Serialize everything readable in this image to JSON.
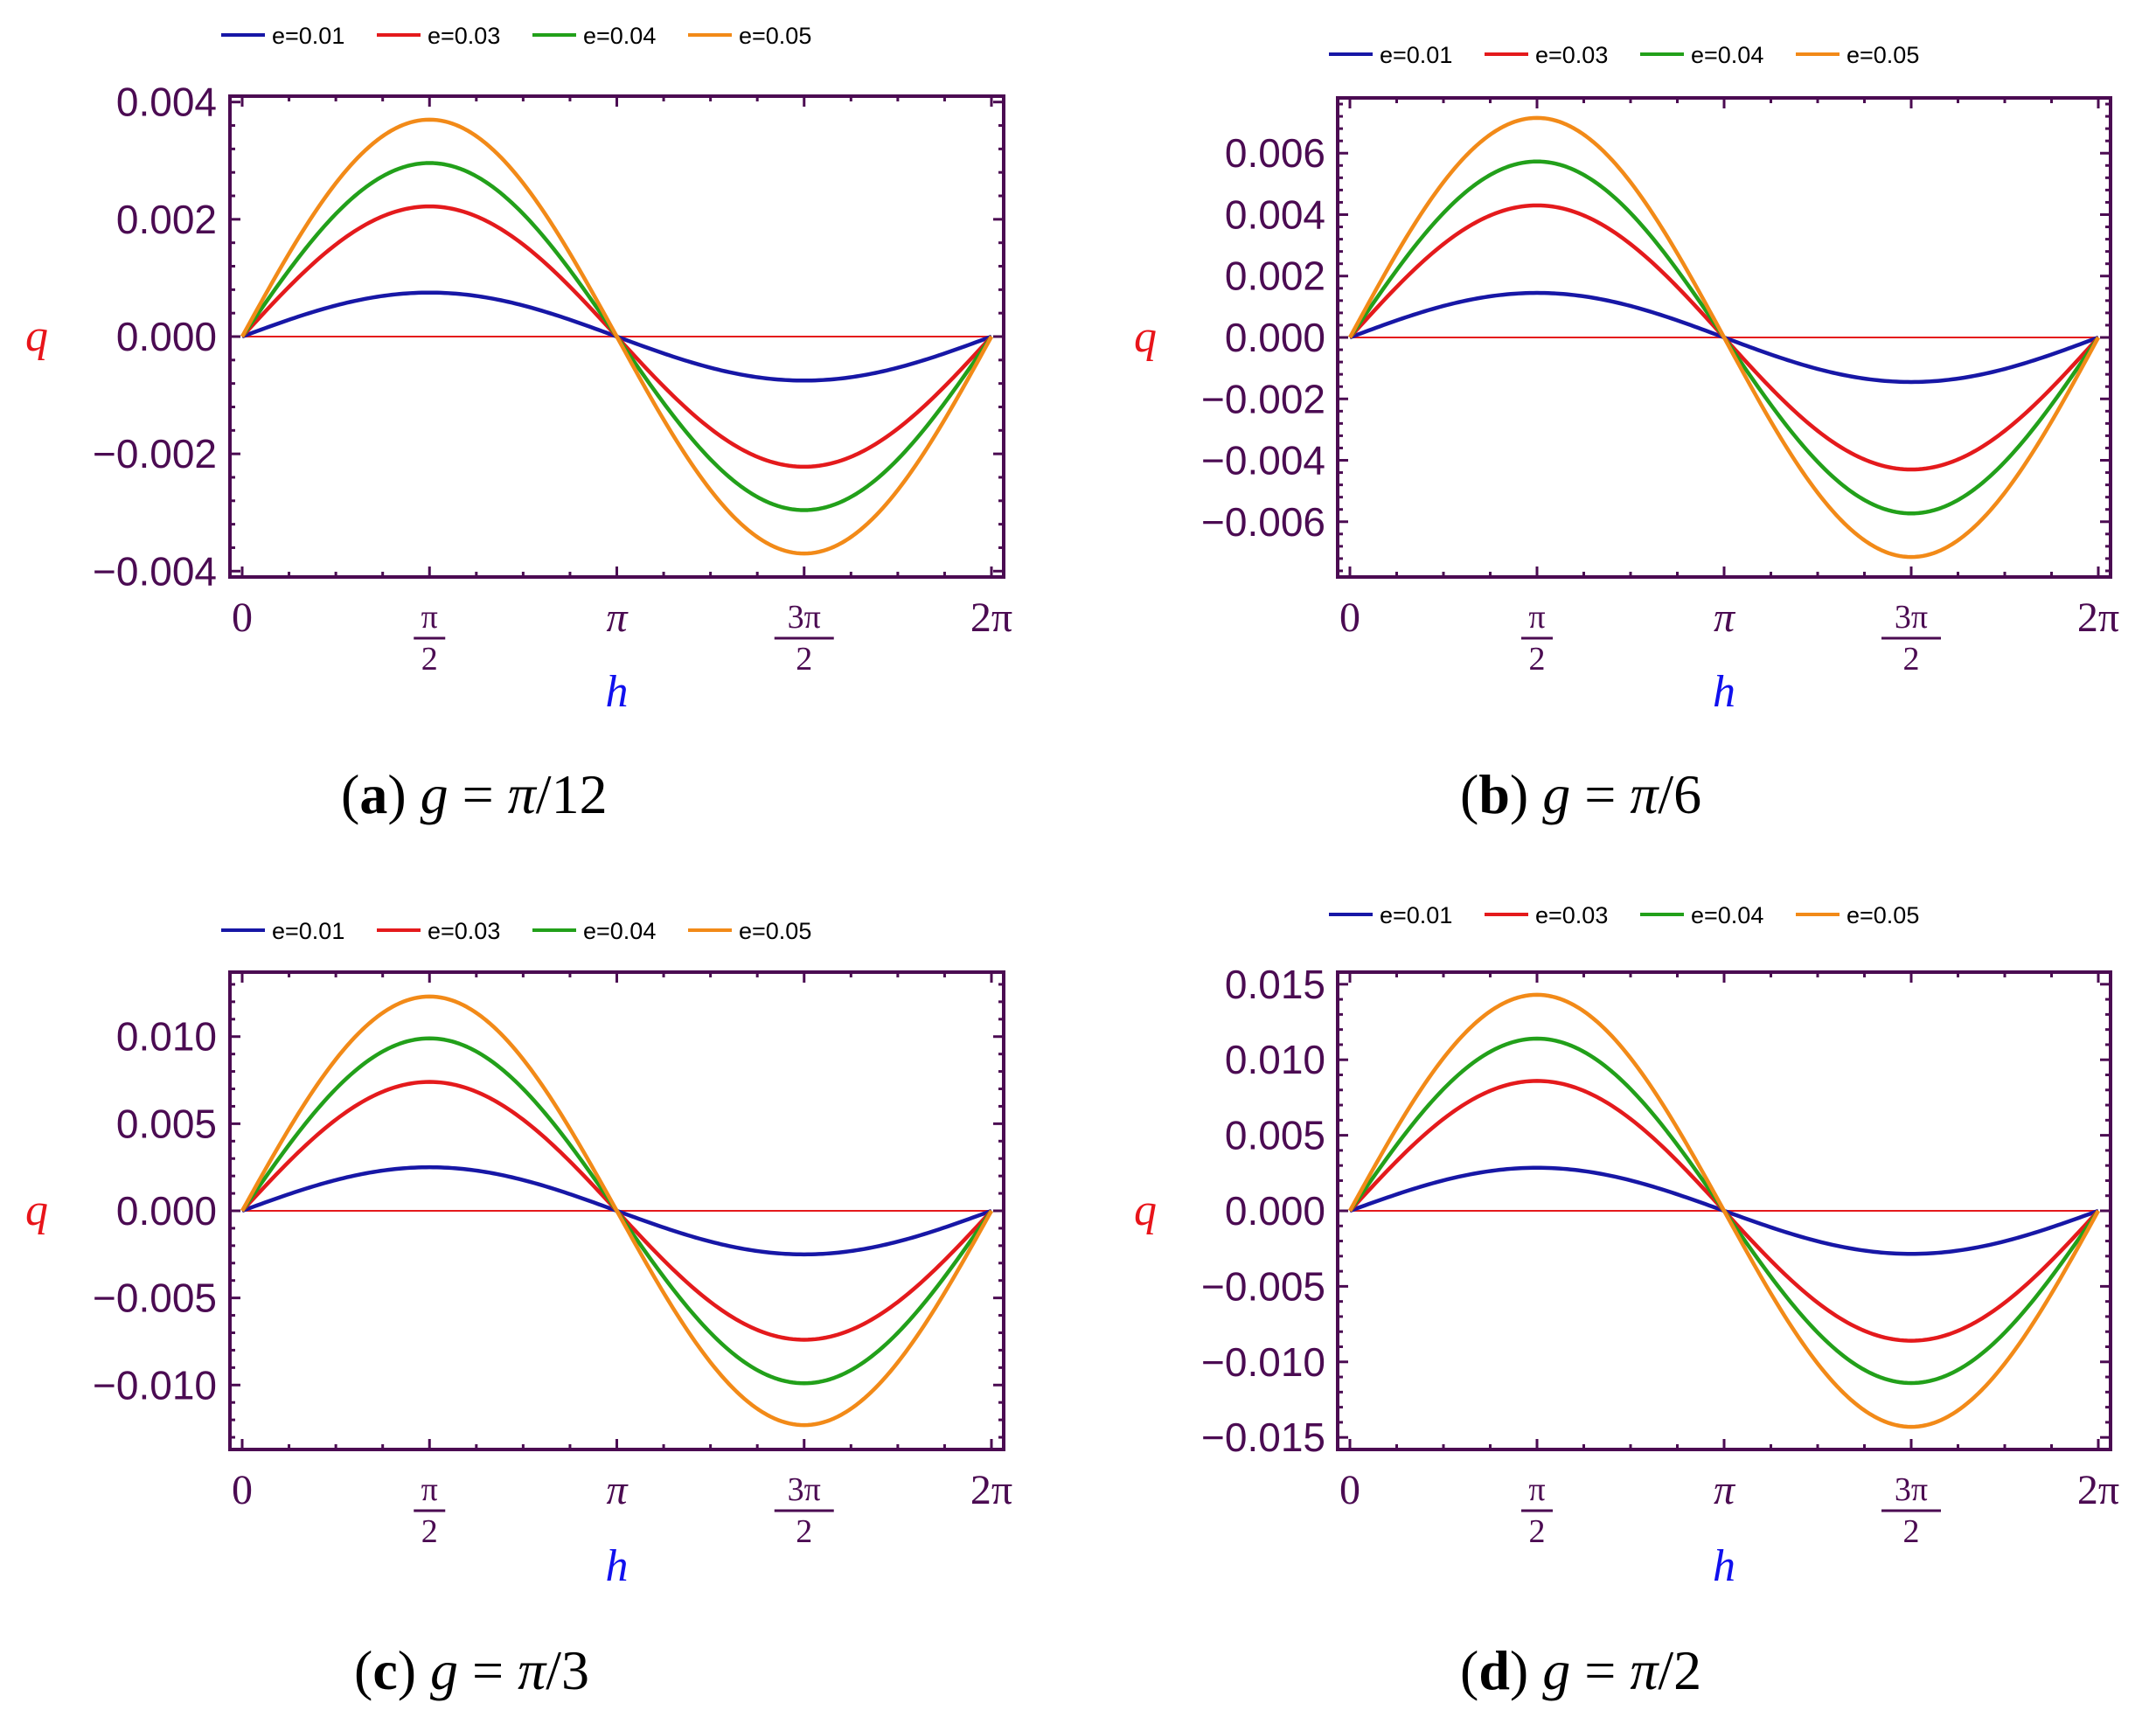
{
  "chart_data": [
    {
      "type": "line",
      "panel": "a",
      "caption": {
        "letter": "a",
        "variable": "g",
        "value": "π/12"
      },
      "xlabel": "h",
      "ylabel": "q",
      "xlim": [
        0,
        6.2832
      ],
      "ylim": [
        -0.0041,
        0.0041
      ],
      "yticks": [
        0.004,
        0.002,
        0.0,
        -0.002,
        -0.004
      ],
      "ytick_labels": [
        "0.004",
        "0.002",
        "0.000",
        "−0.002",
        "−0.004"
      ],
      "xticks": [
        0,
        1.5708,
        3.1416,
        4.7124,
        6.2832
      ],
      "xtick_labels": [
        "0",
        "π/2",
        "π",
        "3π/2",
        "2π"
      ],
      "series": [
        {
          "name": "e=0.01",
          "color": "#1717a6",
          "amplitude": 0.00075
        },
        {
          "name": "e=0.03",
          "color": "#e41a1c",
          "amplitude": 0.00222
        },
        {
          "name": "e=0.04",
          "color": "#22a01a",
          "amplitude": 0.00296
        },
        {
          "name": "e=0.05",
          "color": "#f28a18",
          "amplitude": 0.0037
        }
      ],
      "reference_line": {
        "y": 0,
        "color": "#e41a1c"
      }
    },
    {
      "type": "line",
      "panel": "b",
      "caption": {
        "letter": "b",
        "variable": "g",
        "value": "π/6"
      },
      "xlabel": "h",
      "ylabel": "q",
      "xlim": [
        0,
        6.2832
      ],
      "ylim": [
        -0.0078,
        0.0078
      ],
      "yticks": [
        0.006,
        0.004,
        0.002,
        0.0,
        -0.002,
        -0.004,
        -0.006
      ],
      "ytick_labels": [
        "0.006",
        "0.004",
        "0.002",
        "0.000",
        "−0.002",
        "−0.004",
        "−0.006"
      ],
      "xticks": [
        0,
        1.5708,
        3.1416,
        4.7124,
        6.2832
      ],
      "xtick_labels": [
        "0",
        "π/2",
        "π",
        "3π/2",
        "2π"
      ],
      "series": [
        {
          "name": "e=0.01",
          "color": "#1717a6",
          "amplitude": 0.00145
        },
        {
          "name": "e=0.03",
          "color": "#e41a1c",
          "amplitude": 0.0043
        },
        {
          "name": "e=0.04",
          "color": "#22a01a",
          "amplitude": 0.00573
        },
        {
          "name": "e=0.05",
          "color": "#f28a18",
          "amplitude": 0.00715
        }
      ],
      "reference_line": {
        "y": 0,
        "color": "#e41a1c"
      }
    },
    {
      "type": "line",
      "panel": "c",
      "caption": {
        "letter": "c",
        "variable": "g",
        "value": "π/3"
      },
      "xlabel": "h",
      "ylabel": "q",
      "xlim": [
        0,
        6.2832
      ],
      "ylim": [
        -0.0137,
        0.0137
      ],
      "yticks": [
        0.01,
        0.005,
        0.0,
        -0.005,
        -0.01
      ],
      "ytick_labels": [
        "0.010",
        "0.005",
        "0.000",
        "−0.005",
        "−0.010"
      ],
      "xticks": [
        0,
        1.5708,
        3.1416,
        4.7124,
        6.2832
      ],
      "xtick_labels": [
        "0",
        "π/2",
        "π",
        "3π/2",
        "2π"
      ],
      "series": [
        {
          "name": "e=0.01",
          "color": "#1717a6",
          "amplitude": 0.0025
        },
        {
          "name": "e=0.03",
          "color": "#e41a1c",
          "amplitude": 0.0074
        },
        {
          "name": "e=0.04",
          "color": "#22a01a",
          "amplitude": 0.0099
        },
        {
          "name": "e=0.05",
          "color": "#f28a18",
          "amplitude": 0.0123
        }
      ],
      "reference_line": {
        "y": 0,
        "color": "#e41a1c"
      }
    },
    {
      "type": "line",
      "panel": "d",
      "caption": {
        "letter": "d",
        "variable": "g",
        "value": "π/2"
      },
      "xlabel": "h",
      "ylabel": "q",
      "xlim": [
        0,
        6.2832
      ],
      "ylim": [
        -0.0158,
        0.0158
      ],
      "yticks": [
        0.015,
        0.01,
        0.005,
        0.0,
        -0.005,
        -0.01,
        -0.015
      ],
      "ytick_labels": [
        "0.015",
        "0.010",
        "0.005",
        "0.000",
        "−0.005",
        "−0.010",
        "−0.015"
      ],
      "xticks": [
        0,
        1.5708,
        3.1416,
        4.7124,
        6.2832
      ],
      "xtick_labels": [
        "0",
        "π/2",
        "π",
        "3π/2",
        "2π"
      ],
      "series": [
        {
          "name": "e=0.01",
          "color": "#1717a6",
          "amplitude": 0.00285
        },
        {
          "name": "e=0.03",
          "color": "#e41a1c",
          "amplitude": 0.0086
        },
        {
          "name": "e=0.04",
          "color": "#22a01a",
          "amplitude": 0.0114
        },
        {
          "name": "e=0.05",
          "color": "#f28a18",
          "amplitude": 0.0143
        }
      ],
      "reference_line": {
        "y": 0,
        "color": "#e41a1c"
      }
    }
  ],
  "colors": {
    "frame": "#4b0b52",
    "xlabel": "#1010ee",
    "ylabel": "#e8141a"
  }
}
